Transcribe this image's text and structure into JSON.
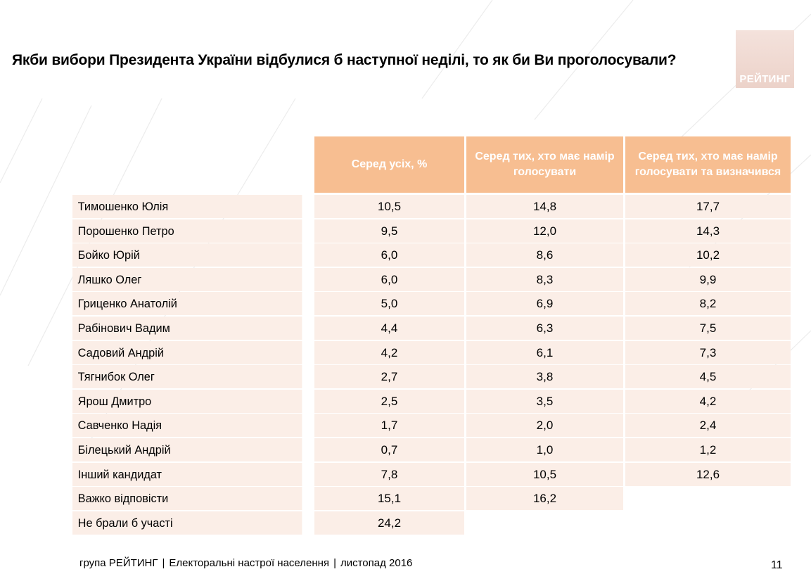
{
  "title": "Якби вибори Президента України відбулися б наступної неділі, то як би Ви проголосували?",
  "logo": {
    "text": "РЕЙТИНГ",
    "icon": "rating-logo"
  },
  "table": {
    "headers": [
      "Серед усіх, %",
      "Серед тих, хто має намір голосувати",
      "Серед тих, хто має намір голосувати та визначився"
    ],
    "rows": [
      {
        "name": "Тимошенко Юлія",
        "all": "10,5",
        "intend": "14,8",
        "decided": "17,7"
      },
      {
        "name": "Порошенко Петро",
        "all": "9,5",
        "intend": "12,0",
        "decided": "14,3"
      },
      {
        "name": "Бойко Юрій",
        "all": "6,0",
        "intend": "8,6",
        "decided": "10,2"
      },
      {
        "name": "Ляшко Олег",
        "all": "6,0",
        "intend": "8,3",
        "decided": "9,9"
      },
      {
        "name": "Гриценко Анатолій",
        "all": "5,0",
        "intend": "6,9",
        "decided": "8,2"
      },
      {
        "name": "Рабінович Вадим",
        "all": "4,4",
        "intend": "6,3",
        "decided": "7,5"
      },
      {
        "name": "Садовий Андрій",
        "all": "4,2",
        "intend": "6,1",
        "decided": "7,3"
      },
      {
        "name": "Тягнибок Олег",
        "all": "2,7",
        "intend": "3,8",
        "decided": "4,5"
      },
      {
        "name": "Ярош Дмитро",
        "all": "2,5",
        "intend": "3,5",
        "decided": "4,2"
      },
      {
        "name": "Савченко Надія",
        "all": "1,7",
        "intend": "2,0",
        "decided": "2,4"
      },
      {
        "name": "Білецький Андрій",
        "all": "0,7",
        "intend": "1,0",
        "decided": "1,2"
      },
      {
        "name": "Інший кандидат",
        "all": "7,8",
        "intend": "10,5",
        "decided": "12,6"
      },
      {
        "name": "Важко відповісти",
        "all": "15,1",
        "intend": "16,2",
        "decided": null
      },
      {
        "name": "Не брали б участі",
        "all": "24,2",
        "intend": null,
        "decided": null
      }
    ]
  },
  "footer": {
    "org": "група РЕЙТИНГ",
    "separator": "|",
    "report": "Електоральні настрої населення",
    "date": "листопад 2016"
  },
  "page_number": "11",
  "colors": {
    "header_bg": "#f7be91",
    "row_bg": "#fbeee7",
    "logo_bg": "#ecd2c9"
  }
}
